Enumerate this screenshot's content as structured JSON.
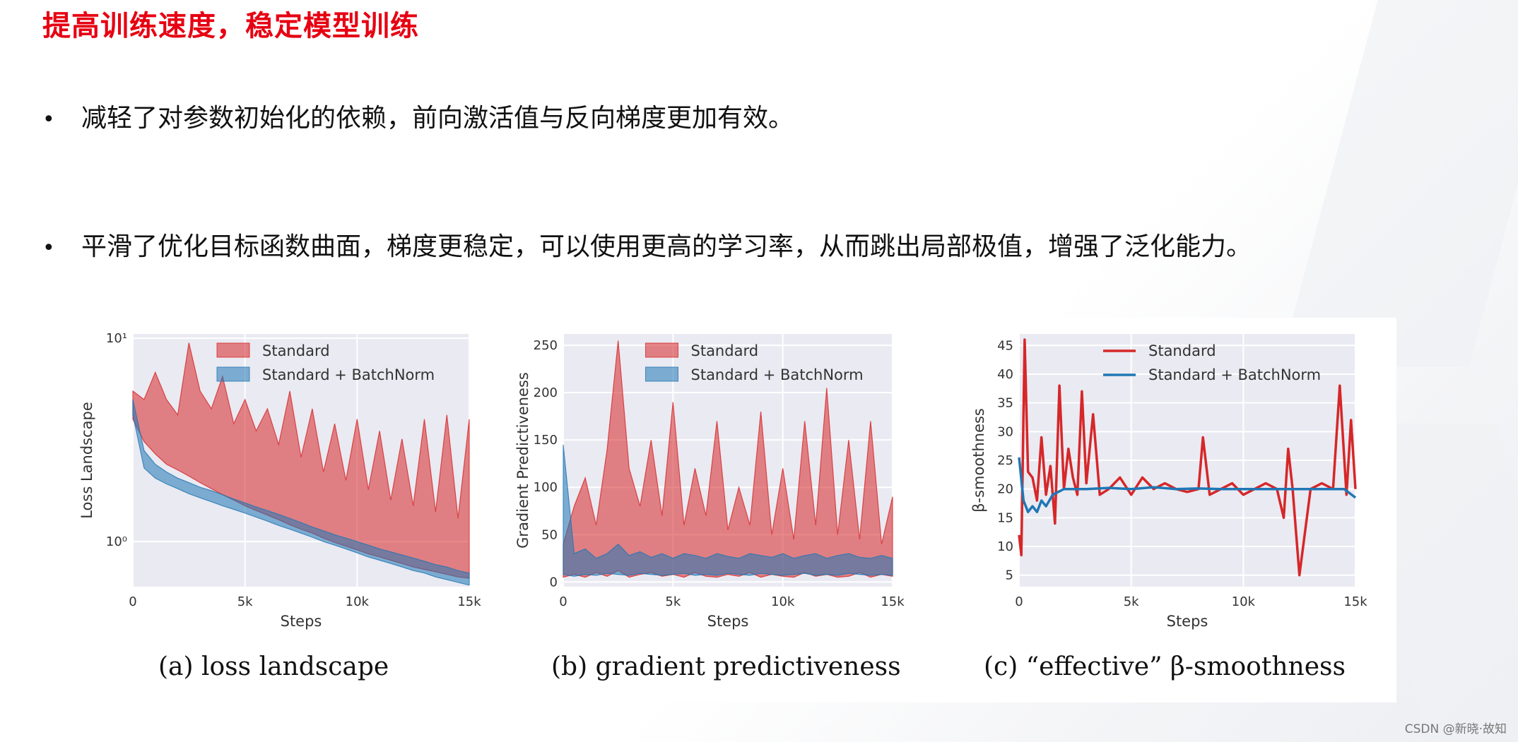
{
  "title": "提高训练速度，稳定模型训练",
  "bullets": [
    "减轻了对参数初始化的依赖，前向激活值与反向梯度更加有效。",
    "平滑了优化目标函数曲面，梯度更稳定，可以使用更高的学习率，从而跳出局部极值，增强了泛化能力。"
  ],
  "bullet_symbol": "•",
  "captions": [
    "(a) loss landscape",
    "(b) gradient predictiveness",
    "(c) “effective” β-smoothness"
  ],
  "watermark": "CSDN @新晓·故知",
  "colors": {
    "title": "#e60012",
    "standard": "#d62728",
    "batchnorm": "#1f77b4",
    "plot_bg": "#eaeaf2"
  },
  "chart_data": [
    {
      "type": "area",
      "xlabel": "Steps",
      "ylabel": "Loss Landscape",
      "yscale": "log",
      "xlim": [
        0,
        15000
      ],
      "ylim": [
        0.6,
        10.5
      ],
      "x_ticks": [
        0,
        5000,
        10000,
        15000
      ],
      "x_tick_labels": [
        "0",
        "5k",
        "10k",
        "15k"
      ],
      "y_ticks": [
        1,
        10
      ],
      "y_tick_labels": [
        "10⁰",
        "10¹"
      ],
      "grid": true,
      "legend": "top-right",
      "series": [
        {
          "name": "Standard",
          "x": [
            0,
            500,
            1000,
            1500,
            2000,
            2500,
            3000,
            3500,
            4000,
            4500,
            5000,
            5500,
            6000,
            6500,
            7000,
            7500,
            8000,
            8500,
            9000,
            9500,
            10000,
            10500,
            11000,
            11500,
            12000,
            12500,
            13000,
            13500,
            14000,
            14500,
            15000
          ],
          "low": [
            4.0,
            3.1,
            2.7,
            2.4,
            2.25,
            2.1,
            1.95,
            1.82,
            1.7,
            1.6,
            1.5,
            1.42,
            1.35,
            1.28,
            1.21,
            1.15,
            1.1,
            1.04,
            0.99,
            0.95,
            0.91,
            0.87,
            0.84,
            0.81,
            0.78,
            0.75,
            0.73,
            0.71,
            0.69,
            0.67,
            0.66
          ],
          "high": [
            5.5,
            5.0,
            6.8,
            5.0,
            4.2,
            9.5,
            5.5,
            4.5,
            6.5,
            3.8,
            5.0,
            3.5,
            4.5,
            3.0,
            5.5,
            2.6,
            4.5,
            2.2,
            3.8,
            2.0,
            4.0,
            1.8,
            3.5,
            1.6,
            3.2,
            1.5,
            4.0,
            1.4,
            4.2,
            1.3,
            4.0
          ]
        },
        {
          "name": "Standard + BatchNorm",
          "x": [
            0,
            500,
            1000,
            1500,
            2000,
            2500,
            3000,
            3500,
            4000,
            4500,
            5000,
            5500,
            6000,
            6500,
            7000,
            7500,
            8000,
            8500,
            9000,
            9500,
            10000,
            10500,
            11000,
            11500,
            12000,
            12500,
            13000,
            13500,
            14000,
            14500,
            15000
          ],
          "low": [
            4.2,
            2.3,
            2.05,
            1.92,
            1.82,
            1.72,
            1.64,
            1.57,
            1.5,
            1.44,
            1.38,
            1.32,
            1.26,
            1.2,
            1.15,
            1.1,
            1.05,
            1.0,
            0.96,
            0.92,
            0.88,
            0.84,
            0.81,
            0.78,
            0.75,
            0.72,
            0.7,
            0.67,
            0.65,
            0.63,
            0.61
          ],
          "high": [
            5.0,
            2.8,
            2.4,
            2.2,
            2.05,
            1.95,
            1.85,
            1.78,
            1.7,
            1.62,
            1.55,
            1.48,
            1.42,
            1.36,
            1.3,
            1.24,
            1.18,
            1.13,
            1.08,
            1.04,
            1.0,
            0.96,
            0.92,
            0.89,
            0.86,
            0.83,
            0.8,
            0.77,
            0.75,
            0.72,
            0.7
          ]
        }
      ]
    },
    {
      "type": "area",
      "xlabel": "Steps",
      "ylabel": "Gradient Predictiveness",
      "xlim": [
        0,
        15000
      ],
      "ylim": [
        -5,
        262
      ],
      "x_ticks": [
        0,
        5000,
        10000,
        15000
      ],
      "x_tick_labels": [
        "0",
        "5k",
        "10k",
        "15k"
      ],
      "y_ticks": [
        0,
        50,
        100,
        150,
        200,
        250
      ],
      "y_tick_labels": [
        "0",
        "50",
        "100",
        "150",
        "200",
        "250"
      ],
      "grid": true,
      "legend": "top-right",
      "series": [
        {
          "name": "Standard",
          "x": [
            0,
            500,
            1000,
            1500,
            2000,
            2500,
            3000,
            3500,
            4000,
            4500,
            5000,
            5500,
            6000,
            6500,
            7000,
            7500,
            8000,
            8500,
            9000,
            9500,
            10000,
            10500,
            11000,
            11500,
            12000,
            12500,
            13000,
            13500,
            14000,
            14500,
            15000
          ],
          "low": [
            5,
            8,
            5,
            10,
            6,
            12,
            5,
            8,
            10,
            6,
            8,
            5,
            10,
            6,
            5,
            8,
            6,
            10,
            5,
            8,
            6,
            5,
            10,
            6,
            8,
            5,
            6,
            10,
            5,
            8,
            6
          ],
          "high": [
            40,
            80,
            110,
            60,
            140,
            255,
            120,
            80,
            150,
            70,
            190,
            60,
            120,
            70,
            170,
            55,
            100,
            60,
            180,
            50,
            120,
            45,
            170,
            60,
            205,
            50,
            150,
            45,
            170,
            40,
            90
          ]
        },
        {
          "name": "Standard + BatchNorm",
          "x": [
            0,
            500,
            1000,
            1500,
            2000,
            2500,
            3000,
            3500,
            4000,
            4500,
            5000,
            5500,
            6000,
            6500,
            7000,
            7500,
            8000,
            8500,
            9000,
            9500,
            10000,
            10500,
            11000,
            11500,
            12000,
            12500,
            13000,
            13500,
            14000,
            14500,
            15000
          ],
          "low": [
            8,
            6,
            8,
            7,
            9,
            8,
            7,
            9,
            8,
            7,
            8,
            9,
            7,
            8,
            7,
            9,
            8,
            7,
            9,
            8,
            7,
            8,
            9,
            7,
            8,
            7,
            9,
            8,
            7,
            8,
            7
          ],
          "high": [
            145,
            30,
            35,
            25,
            30,
            40,
            28,
            32,
            26,
            30,
            25,
            30,
            28,
            25,
            30,
            27,
            25,
            30,
            28,
            26,
            30,
            25,
            28,
            30,
            25,
            28,
            30,
            26,
            25,
            28,
            25
          ]
        }
      ]
    },
    {
      "type": "line",
      "xlabel": "Steps",
      "ylabel": "β-smoothness",
      "xlim": [
        0,
        15000
      ],
      "ylim": [
        3,
        47
      ],
      "x_ticks": [
        0,
        5000,
        10000,
        15000
      ],
      "x_tick_labels": [
        "0",
        "5k",
        "10k",
        "15k"
      ],
      "y_ticks": [
        5,
        10,
        15,
        20,
        25,
        30,
        35,
        40,
        45
      ],
      "y_tick_labels": [
        "5",
        "10",
        "15",
        "20",
        "25",
        "30",
        "35",
        "40",
        "45"
      ],
      "grid": true,
      "legend": "top-right",
      "series": [
        {
          "name": "Standard",
          "x": [
            0,
            100,
            250,
            400,
            600,
            800,
            1000,
            1200,
            1400,
            1600,
            1800,
            2000,
            2200,
            2400,
            2600,
            2800,
            3000,
            3300,
            3600,
            4000,
            4500,
            5000,
            5500,
            6000,
            6500,
            7000,
            7500,
            8000,
            8200,
            8500,
            9000,
            9500,
            10000,
            10500,
            11000,
            11500,
            11800,
            12000,
            12200,
            12500,
            13000,
            13500,
            14000,
            14300,
            14600,
            14800,
            15000
          ],
          "y": [
            12,
            8.5,
            46,
            23,
            22,
            18,
            29,
            19,
            24,
            14,
            38,
            20,
            27,
            22,
            19,
            37,
            21,
            33,
            19,
            20,
            22,
            19,
            22,
            20,
            21,
            20,
            19.5,
            20,
            29,
            19,
            20,
            21,
            19,
            20,
            21,
            20,
            15,
            27,
            20,
            5,
            20,
            21,
            20,
            38,
            19,
            32,
            20
          ]
        },
        {
          "name": "Standard + BatchNorm",
          "x": [
            0,
            200,
            400,
            600,
            800,
            1000,
            1200,
            1500,
            2000,
            3000,
            4000,
            5000,
            6000,
            7000,
            8000,
            9000,
            10000,
            11000,
            12000,
            13000,
            14000,
            14500,
            15000
          ],
          "y": [
            25.5,
            18,
            16,
            17,
            16,
            18,
            17,
            19,
            20,
            20,
            20.2,
            20,
            20.3,
            20,
            20.1,
            20,
            20,
            20,
            20,
            20,
            20,
            20,
            18.5
          ]
        }
      ]
    }
  ]
}
